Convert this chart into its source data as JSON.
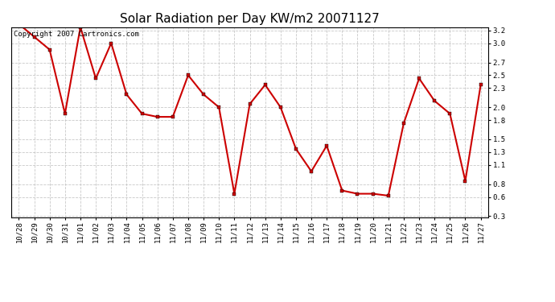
{
  "title": "Solar Radiation per Day KW/m2 20071127",
  "copyright_text": "Copyright 2007 Cartronics.com",
  "x_labels": [
    "10/28",
    "10/29",
    "10/30",
    "10/31",
    "11/01",
    "11/02",
    "11/03",
    "11/04",
    "11/05",
    "11/06",
    "11/07",
    "11/08",
    "11/09",
    "11/10",
    "11/11",
    "11/12",
    "11/13",
    "11/14",
    "11/15",
    "11/16",
    "11/17",
    "11/18",
    "11/19",
    "11/20",
    "11/21",
    "11/22",
    "11/23",
    "11/24",
    "11/25",
    "11/26",
    "11/27"
  ],
  "y_values": [
    3.3,
    3.1,
    2.9,
    1.9,
    3.25,
    2.45,
    3.0,
    2.2,
    1.9,
    1.85,
    1.85,
    2.5,
    2.2,
    2.0,
    0.65,
    2.05,
    2.35,
    2.0,
    1.35,
    1.0,
    1.4,
    0.7,
    0.65,
    0.65,
    0.62,
    1.75,
    2.45,
    2.1,
    1.9,
    0.85,
    2.35
  ],
  "line_color": "#cc0000",
  "marker": "s",
  "marker_size": 2.5,
  "line_width": 1.5,
  "ylim_min": 0.3,
  "ylim_max": 3.2,
  "yticks": [
    0.3,
    0.6,
    0.8,
    1.1,
    1.3,
    1.5,
    1.8,
    2.0,
    2.3,
    2.5,
    2.7,
    3.0,
    3.2
  ],
  "background_color": "#ffffff",
  "grid_color": "#bbbbbb",
  "title_fontsize": 11,
  "tick_fontsize": 6.5,
  "copyright_fontsize": 6.5
}
